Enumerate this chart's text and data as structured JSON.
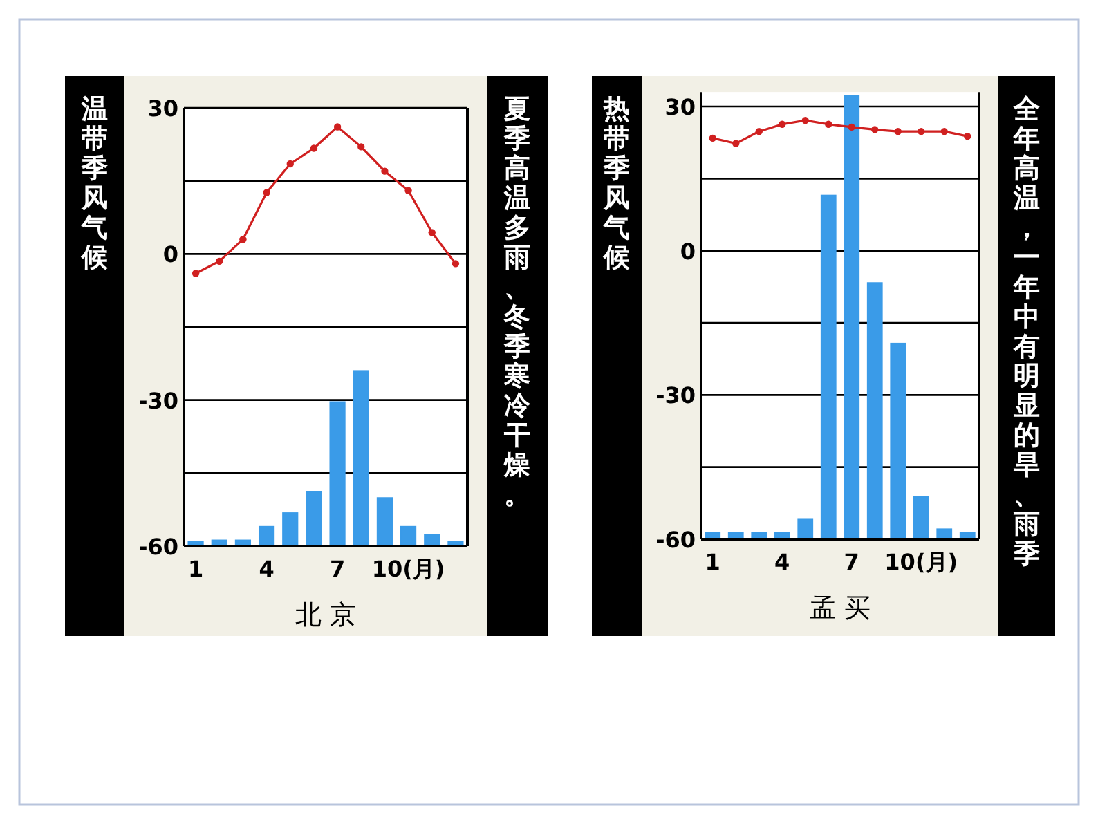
{
  "chart_data": [
    {
      "type": "bar",
      "title": "温带季风气候",
      "xlabel": "北 京",
      "annotations": [
        "夏季高温多雨、冬季寒冷干燥。"
      ],
      "categories": [
        "1",
        null,
        null,
        "4",
        null,
        null,
        "7",
        null,
        null,
        "10(月)",
        null,
        null
      ],
      "ylim": [
        -60,
        30
      ],
      "yticks": [
        -60,
        {
          "value": -45,
          "label": null
        },
        -30,
        {
          "value": -15,
          "label": null
        },
        0,
        {
          "value": 15,
          "label": null
        },
        30
      ],
      "grid": "y",
      "marker": "circle",
      "line_style": "solid",
      "series": [
        {
          "color": "#3a9be8",
          "base": [
            -60,
            -60,
            -60,
            -60,
            -60,
            -60,
            -60,
            -60,
            -60,
            -60,
            -60,
            -60
          ],
          "values": [
            0.9,
            1.2,
            1.2,
            4,
            6.8,
            11.2,
            29.6,
            36,
            9.9,
            4,
            2.4,
            0.9
          ]
        },
        {
          "type": "line",
          "color": "#d02020",
          "values": [
            -4,
            -1.5,
            3,
            12.6,
            18.5,
            21.7,
            26.1,
            22,
            17,
            13,
            4.4,
            -2
          ]
        }
      ]
    },
    {
      "type": "bar",
      "title": "热带季风气候",
      "xlabel": "孟 买",
      "annotations": [
        "全年高温，一年中有明显的旱、雨季"
      ],
      "categories": [
        "1",
        null,
        null,
        "4",
        null,
        null,
        "7",
        null,
        null,
        "10(月)",
        null,
        null
      ],
      "ylim": [
        -60,
        33
      ],
      "yticks": [
        -60,
        {
          "value": -45,
          "label": null
        },
        -30,
        {
          "value": -15,
          "label": null
        },
        0,
        {
          "value": 15,
          "label": null
        },
        30
      ],
      "grid": "y",
      "marker": "circle",
      "line_style": "solid",
      "series": [
        {
          "color": "#3a9be8",
          "base": [
            -60,
            -60,
            -60,
            -60,
            -60,
            -60,
            -60,
            -60,
            -60,
            -60,
            -60,
            -60
          ],
          "values": [
            1.3,
            1.3,
            1.3,
            1.3,
            4.1,
            71.5,
            92.2,
            53.3,
            40.7,
            8.8,
            2.1,
            1.3
          ]
        },
        {
          "type": "line",
          "color": "#d02020",
          "values": [
            23.4,
            22.3,
            24.8,
            26.3,
            27.1,
            26.3,
            25.7,
            25.2,
            24.8,
            24.8,
            24.8,
            23.8
          ]
        }
      ]
    }
  ]
}
